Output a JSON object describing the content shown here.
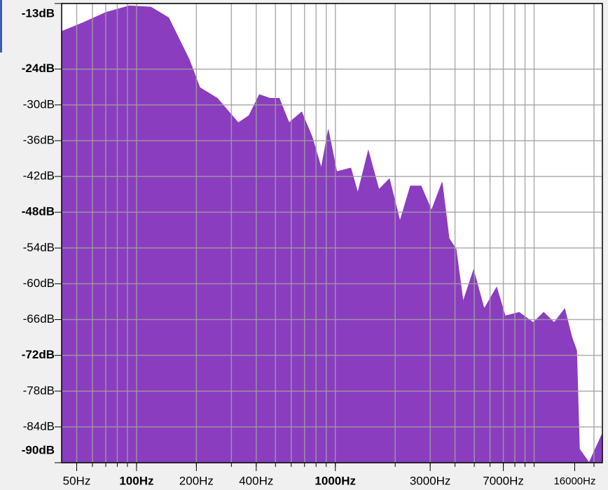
{
  "chart_data": {
    "type": "area",
    "log_x": true,
    "grid": true,
    "color": "#8a3dbf",
    "xlim": [
      42,
      22050
    ],
    "ylim": [
      -90,
      -13
    ],
    "xticks": [
      {
        "value": 50,
        "label": "50Hz"
      },
      {
        "value": 100,
        "label": "100Hz",
        "bold": true
      },
      {
        "value": 200,
        "label": "200Hz"
      },
      {
        "value": 400,
        "label": "400Hz"
      },
      {
        "value": 1000,
        "label": "1000Hz",
        "bold": true
      },
      {
        "value": 3000,
        "label": "3000Hz"
      },
      {
        "value": 7000,
        "label": "7000Hz"
      },
      {
        "value": 16000,
        "label": "16000Hz",
        "small": true
      }
    ],
    "xgrid": [
      50,
      60,
      70,
      80,
      90,
      100,
      200,
      300,
      400,
      500,
      600,
      700,
      800,
      900,
      1000,
      2000,
      3000,
      4000,
      5000,
      6000,
      7000,
      8000,
      9000,
      10000,
      20000
    ],
    "yticks": [
      {
        "value": -13,
        "label": "-13dB",
        "bold": true
      },
      {
        "value": -24,
        "label": "-24dB",
        "bold": true
      },
      {
        "value": -30,
        "label": "-30dB"
      },
      {
        "value": -36,
        "label": "-36dB"
      },
      {
        "value": -42,
        "label": "-42dB"
      },
      {
        "value": -48,
        "label": "-48dB",
        "bold": true
      },
      {
        "value": -54,
        "label": "-54dB"
      },
      {
        "value": -60,
        "label": "-60dB"
      },
      {
        "value": -66,
        "label": "-66dB"
      },
      {
        "value": -72,
        "label": "-72dB",
        "bold": true
      },
      {
        "value": -78,
        "label": "-78dB"
      },
      {
        "value": -84,
        "label": "-84dB"
      },
      {
        "value": -90,
        "label": "-90dB",
        "bold": true
      }
    ],
    "x": [
      42,
      54,
      70,
      92,
      118,
      145,
      184,
      208,
      255,
      325,
      368,
      415,
      469,
      522,
      585,
      677,
      764,
      850,
      922,
      1016,
      1196,
      1297,
      1465,
      1656,
      1870,
      2114,
      2388,
      2698,
      3049,
      3445,
      3733,
      4049,
      4392,
      4960,
      5605,
      6479,
      7149,
      8404,
      9893,
      11170,
      12620,
      14250,
      15460,
      16360,
      16900,
      18900,
      21900,
      22050
    ],
    "values": [
      -17.7,
      -16.2,
      -14.5,
      -13.4,
      -13.6,
      -15.4,
      -22.4,
      -27.1,
      -28.9,
      -33,
      -31.8,
      -28.3,
      -28.9,
      -28.9,
      -33,
      -31.2,
      -35.4,
      -40.6,
      -34.2,
      -41.2,
      -40.6,
      -44.8,
      -37.7,
      -44.2,
      -42.4,
      -49.5,
      -43.6,
      -43.6,
      -47.7,
      -43,
      -52.4,
      -54.2,
      -63,
      -57.7,
      -64.2,
      -60.6,
      -65.4,
      -64.8,
      -66.5,
      -64.8,
      -66.5,
      -64.2,
      -68.9,
      -71.2,
      -87.7,
      -90,
      -85.3,
      -85.3
    ]
  }
}
